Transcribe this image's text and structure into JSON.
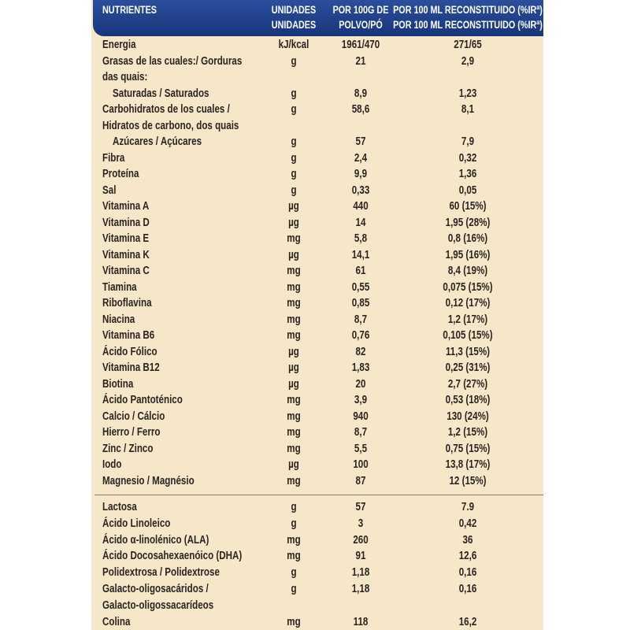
{
  "header": {
    "nutrients": "NUTRIENTES",
    "units": [
      "UNIDADES",
      "UNIDADES"
    ],
    "per_100g": [
      "POR 100G DE",
      "POLVO/PÓ"
    ],
    "per_100ml": [
      "POR 100 ML RECONSTITUIDO (%IRª)",
      "POR 100 ML RECONSTITUIDO (%IRª)"
    ]
  },
  "sections": [
    {
      "rows": [
        [
          "Energia",
          "kJ/kcal",
          "1961/470",
          "271/65"
        ],
        [
          "Grasas de las cuales:/ Gorduras",
          "g",
          "21",
          "2,9"
        ],
        [
          "das quais:"
        ],
        [
          "Saturadas / Saturados",
          "g",
          "8,9",
          "1,23"
        ],
        [
          "Carbohidratos de los cuales /",
          "g",
          "58,6",
          "8,1"
        ],
        [
          "Hidratos de carbono, dos quais"
        ],
        [
          "Azúcares / Açúcares",
          "g",
          "57",
          "7,9"
        ],
        [
          "Fibra",
          "g",
          "2,4",
          "0,32"
        ],
        [
          "Proteína",
          "g",
          "9,9",
          "1,36"
        ],
        [
          "Sal",
          "g",
          "0,33",
          "0,05"
        ],
        [
          "Vitamina A",
          "µg",
          "440",
          "60 (15%)"
        ],
        [
          "Vitamina D",
          "µg",
          "14",
          "1,95 (28%)"
        ],
        [
          "Vitamina E",
          "mg",
          "5,8",
          "0,8 (16%)"
        ],
        [
          "Vitamina K",
          "µg",
          "14,1",
          "1,95 (16%)"
        ],
        [
          "Vitamina C",
          "mg",
          "61",
          "8,4 (19%)"
        ],
        [
          "Tiamina",
          "mg",
          "0,55",
          "0,075 (15%)"
        ],
        [
          "Riboflavina",
          "mg",
          "0,85",
          "0,12 (17%)"
        ],
        [
          "Niacina",
          "mg",
          "8,7",
          "1,2 (17%)"
        ],
        [
          "Vitamina B6",
          "mg",
          "0,76",
          "0,105 (15%)"
        ],
        [
          "Ácido Fólico",
          "µg",
          "82",
          "11,3 (15%)"
        ],
        [
          "Vitamina B12",
          "µg",
          "1,83",
          "0,25 (31%)"
        ],
        [
          "Biotina",
          "µg",
          "20",
          "2,7 (27%)"
        ],
        [
          "Ácido Pantoténico",
          "mg",
          "3,9",
          "0,53 (18%)"
        ],
        [
          "Calcio / Cálcio",
          "mg",
          "940",
          "130 (24%)"
        ],
        [
          "Hierro / Ferro",
          "mg",
          "8,7",
          "1,2 (15%)"
        ],
        [
          "Zinc / Zinco",
          "mg",
          "5,5",
          "0,75 (15%)"
        ],
        [
          "Iodo",
          "µg",
          "100",
          "13,8 (17%)"
        ],
        [
          "Magnesio / Magnésio",
          "mg",
          "87",
          "12 (15%)"
        ]
      ]
    },
    {
      "rows": [
        [
          "Lactosa",
          "g",
          "57",
          "7.9"
        ],
        [
          "Ácido Linoleico",
          "g",
          "3",
          "0,42"
        ],
        [
          "Ácido α-linolénico (ALA)",
          "mg",
          "260",
          "36"
        ],
        [
          "Ácido Docosahexaenóico (DHA)",
          "mg",
          "91",
          "12,6"
        ],
        [
          "Polidextrosa / Polidextrose",
          "g",
          "1,18",
          "0,16"
        ],
        [
          "Galacto-oligosacáridos /",
          "g",
          "1,18",
          "0,16"
        ],
        [
          "Galacto-oligossacarídeos"
        ],
        [
          "Colina",
          "mg",
          "118",
          "16,2"
        ]
      ]
    }
  ]
}
